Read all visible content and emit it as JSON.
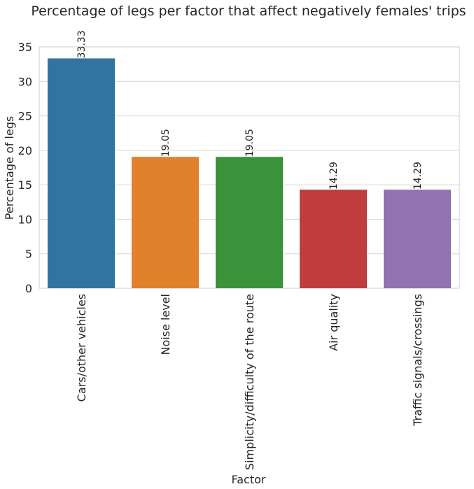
{
  "chart_data": {
    "type": "bar",
    "title": "Percentage of legs per factor that affect negatively females' trips",
    "xlabel": "Factor",
    "ylabel": "Percentage of legs",
    "categories": [
      "Cars/other vehicles",
      "Noise level",
      "Simplicity/difficulty of the route",
      "Air quality",
      "Traffic signals/crossings"
    ],
    "values": [
      33.33,
      19.05,
      19.05,
      14.29,
      14.29
    ],
    "value_labels": [
      "33.33",
      "19.05",
      "19.05",
      "14.29",
      "14.29"
    ],
    "colors": [
      "#3274a1",
      "#e1812c",
      "#3a923a",
      "#c03d3e",
      "#9372b2"
    ],
    "ylim": [
      0,
      35
    ],
    "yticks": [
      0,
      5,
      10,
      15,
      20,
      25,
      30,
      35
    ],
    "grid": true,
    "legend": "none"
  }
}
